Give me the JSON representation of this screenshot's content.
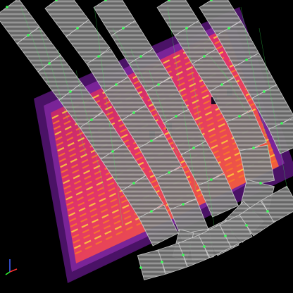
{
  "viewer": {
    "scene": "thermal-orthomosaic-with-camera-frusta",
    "background": "#000000"
  },
  "roof": {
    "palette": {
      "edge": "#2a0840",
      "rim": "#6a1a86",
      "cool": "#a01b6e",
      "warm": "#e2346a",
      "hot": "#f87a2a",
      "hottest": "#ffd23a"
    }
  },
  "camera_frames": {
    "fill": "#8a8a8a",
    "stroke": "#d0d0d0",
    "link_color": "#3cff5a"
  },
  "axis_gizmo": {
    "x_color": "#ff3030",
    "y_color": "#30ff30",
    "z_color": "#4060ff"
  }
}
